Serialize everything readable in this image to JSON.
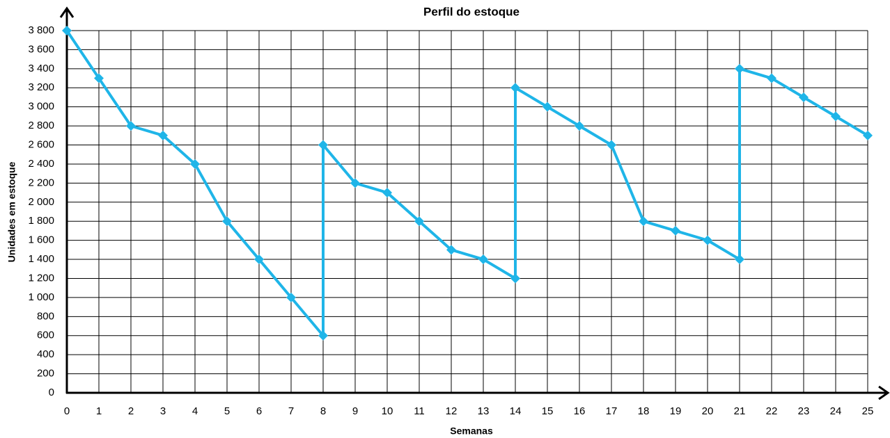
{
  "chart_data": {
    "type": "line",
    "title": "Perfil do estoque",
    "x_label": "Semanas",
    "y_label": "Unidades em estoque",
    "x": [
      0,
      1,
      2,
      3,
      4,
      5,
      6,
      7,
      8,
      8,
      9,
      10,
      11,
      12,
      13,
      14,
      14,
      15,
      16,
      17,
      18,
      19,
      20,
      21,
      21,
      22,
      23,
      24,
      25
    ],
    "series": [
      {
        "color": "#1fb5e8",
        "values": [
          3800,
          3300,
          2800,
          2700,
          2400,
          1800,
          1400,
          1000,
          600,
          2600,
          2200,
          2100,
          1800,
          1500,
          1400,
          1200,
          3200,
          3000,
          2800,
          2600,
          1800,
          1700,
          1600,
          1400,
          3400,
          3300,
          3100,
          2900,
          2700
        ]
      }
    ],
    "xlim": [
      0,
      25
    ],
    "xticks": [
      0,
      1,
      2,
      3,
      4,
      5,
      6,
      7,
      8,
      9,
      10,
      11,
      12,
      13,
      14,
      15,
      16,
      17,
      18,
      19,
      20,
      21,
      22,
      23,
      24,
      25
    ],
    "ylim": [
      0,
      3800
    ],
    "yticks": [
      0,
      200,
      400,
      600,
      800,
      {
        "value": 1000,
        "label": "1 000"
      },
      {
        "value": 1200,
        "label": "1 200"
      },
      {
        "value": 1400,
        "label": "1 400"
      },
      {
        "value": 1600,
        "label": "1 600"
      },
      {
        "value": 1800,
        "label": "1 800"
      },
      {
        "value": 2000,
        "label": "2 000"
      },
      {
        "value": 2200,
        "label": "2 200"
      },
      {
        "value": 2400,
        "label": "2 400"
      },
      {
        "value": 2600,
        "label": "2 600"
      },
      {
        "value": 2800,
        "label": "2 800"
      },
      {
        "value": 3000,
        "label": "3 000"
      },
      {
        "value": 3200,
        "label": "3 200"
      },
      {
        "value": 3400,
        "label": "3 400"
      },
      {
        "value": 3600,
        "label": "3 600"
      },
      {
        "value": 3800,
        "label": "3 800"
      }
    ],
    "grid": true
  }
}
